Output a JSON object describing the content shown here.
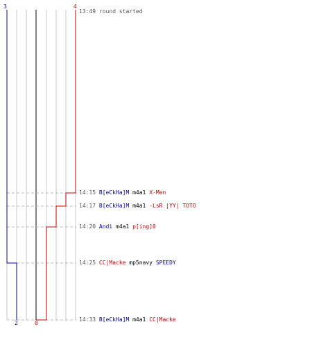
{
  "colors": {
    "blue_team": "#0000aa",
    "red_team": "#cc0000",
    "grid": "#c8c8c8",
    "center_line": "#808080",
    "dashed": "#bbbbbb",
    "time": "#555555"
  },
  "score": {
    "left_start": "3",
    "right_start": "4",
    "left_end": "2",
    "right_end": "0"
  },
  "header": {
    "time": "13:49",
    "text": "round started"
  },
  "events": [
    {
      "time": "14:15",
      "killer": "B[eCkHa]M",
      "weapon": "m4a1",
      "victim": "X-Men",
      "killer_team": "blue",
      "victim_team": "red",
      "red_remaining": 3
    },
    {
      "time": "14:17",
      "killer": "B[eCkHa]M",
      "weapon": "m4a1",
      "victim": "-LsR |YY| TOTO",
      "killer_team": "blue",
      "victim_team": "red",
      "red_remaining": 2
    },
    {
      "time": "14:20",
      "killer": "Andi",
      "weapon": "m4a1",
      "victim": "p[ing]0",
      "killer_team": "blue",
      "victim_team": "red",
      "red_remaining": 1
    },
    {
      "time": "14:25",
      "killer": "CC|Macke",
      "weapon": "mp5navy",
      "victim": "SPEEDY",
      "killer_team": "red",
      "victim_team": "blue",
      "blue_remaining": 2
    },
    {
      "time": "14:33",
      "killer": "B[eCkHa]M",
      "weapon": "m4a1",
      "victim": "CC|Macke",
      "killer_team": "blue",
      "victim_team": "red",
      "red_remaining": 0
    }
  ]
}
